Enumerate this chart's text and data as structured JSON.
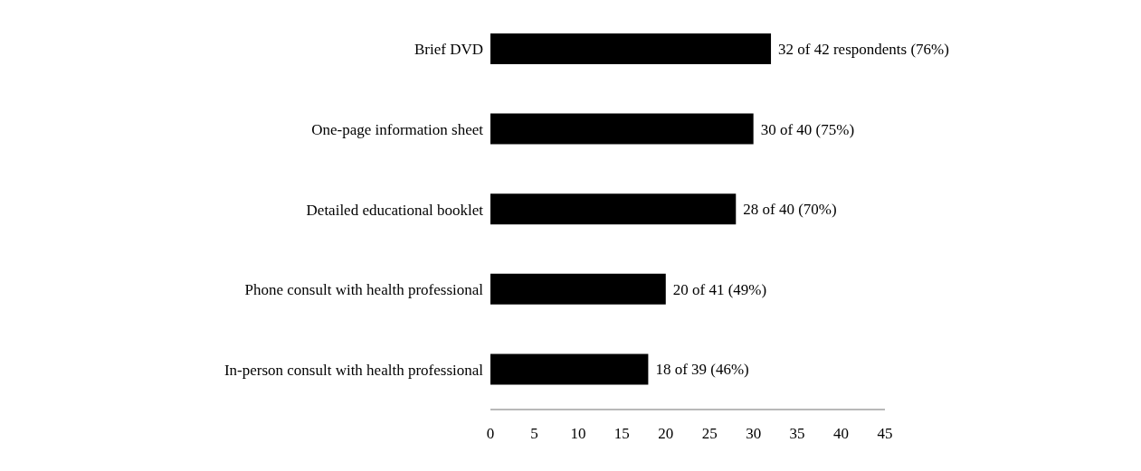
{
  "chart_data": {
    "type": "bar",
    "orientation": "horizontal",
    "categories": [
      "Brief DVD",
      "One-page information sheet",
      "Detailed educational booklet",
      "Phone consult with health professional",
      "In-person consult with health professional"
    ],
    "values": [
      32,
      30,
      28,
      20,
      18
    ],
    "value_labels": [
      "32 of 42 respondents (76%)",
      "30 of 40 (75%)",
      "28 of 40 (70%)",
      "20 of 41 (49%)",
      "18 of 39 (46%)"
    ],
    "color": "#000000",
    "xlim": [
      0,
      45
    ],
    "xticks": [
      0,
      5,
      10,
      15,
      20,
      25,
      30,
      35,
      40,
      45
    ],
    "grid": false
  }
}
